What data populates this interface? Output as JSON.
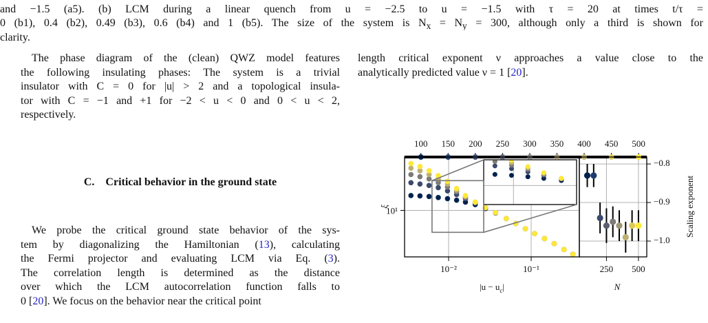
{
  "caption": {
    "lines": [
      "and −1.5 (a5).   (b) LCM during a linear quench from u = −2.5 to u = −1.5 with τ = 20 at times t/τ =",
      [
        "0 (b1), 0.4 (b2), 0.49 (b3), 0.6 (b4) and 1 (b5). The size of the system is N",
        "x",
        " = N",
        "y",
        " = 300, although only a third is shown for"
      ],
      "clarity."
    ]
  },
  "left_column": {
    "paragraph_1": {
      "lines": [
        "The phase diagram of the (clean) QWZ model features",
        "the following insulating phases: The system is a trivial",
        "insulator with C = 0 for |u| > 2 and a topological insula-",
        "tor with C = −1 and +1 for −2 < u < 0 and 0 < u < 2,",
        "respectively."
      ]
    },
    "section": {
      "number": "C.",
      "title": "Critical behavior in the ground state"
    },
    "paragraph_2": {
      "lines": [
        "We probe the critical ground state behavior of the sys-",
        [
          "tem by diagonalizing the Hamiltonian (",
          "13",
          "), calculating"
        ],
        [
          "the Fermi projector and evaluating LCM via Eq. (",
          "3",
          ")."
        ],
        "The correlation length is determined as the distance",
        "over which the LCM autocorrelation function falls to",
        [
          "0 [",
          "20",
          "]. We focus on the behavior near the critical point"
        ]
      ]
    }
  },
  "right_column": {
    "paragraph": {
      "lines": [
        "length critical exponent ν approaches a value close to the",
        [
          "analytically predicted value ν = 1 [",
          "20",
          "]."
        ]
      ]
    },
    "figure": {
      "main": {
        "type": "scatter",
        "x_label": [
          "|u − u",
          "c",
          "|"
        ],
        "y_label": "ξ",
        "log_x": true,
        "log_y": true,
        "grid": true,
        "xlim": [
          0.00293,
          0.383
        ],
        "ylim": [
          2.3,
          54
        ],
        "xticks": [
          {
            "value": 0.01,
            "label": "10⁻²"
          },
          {
            "value": 0.1,
            "label": "10⁻¹"
          }
        ],
        "yticks": [
          {
            "value": 10,
            "label": "10¹"
          }
        ],
        "x": [
          0.0035,
          0.0045,
          0.0058,
          0.0075,
          0.0097,
          0.0125,
          0.016,
          0.021,
          0.028,
          0.037,
          0.05,
          0.065,
          0.085,
          0.11,
          0.145,
          0.19,
          0.25,
          0.32
        ],
        "series": [
          {
            "N": 100,
            "color": "#00224e",
            "values": [
              16,
              15.8,
              15.5,
              15,
              14.5,
              13.8,
              13,
              12,
              10.6,
              9.2,
              7.7,
              6.6,
              5.6,
              4.8,
              4.1,
              3.5,
              2.9,
              2.5
            ]
          },
          {
            "N": 200,
            "color": "#3b496c",
            "values": [
              24,
              23,
              22,
              20.5,
              18.5,
              16.5,
              14.5,
              12.6,
              10.9,
              9.3,
              7.7,
              6.6,
              5.6,
              4.8,
              4.1,
              3.5,
              2.9,
              2.5
            ]
          },
          {
            "N": 300,
            "color": "#7c7b78",
            "values": [
              31,
              29,
              27,
              24,
              21,
              18,
              15,
              12.8,
              10.9,
              9.3,
              7.7,
              6.6,
              5.6,
              4.8,
              4.1,
              3.5,
              2.9,
              2.5
            ]
          },
          {
            "N": 400,
            "color": "#bcaf6f",
            "values": [
              38,
              35,
              31,
              27,
              23,
              19,
              15.5,
              13,
              10.9,
              9.3,
              7.7,
              6.6,
              5.6,
              4.8,
              4.1,
              3.5,
              2.9,
              2.5
            ]
          },
          {
            "N": 500,
            "color": "#fee838",
            "values": [
              44,
              40,
              35,
              30,
              25,
              20,
              16,
              13,
              10.9,
              9.3,
              7.7,
              6.6,
              5.6,
              4.8,
              4.1,
              3.5,
              2.9,
              2.5
            ]
          }
        ]
      },
      "inset": {
        "xlim": [
          0.0063,
          0.0266
        ],
        "ylim": [
          5.0,
          25.6
        ],
        "grid": true
      },
      "top_axis": {
        "xlim": [
          70,
          515
        ],
        "xticks": [
          100,
          150,
          200,
          250,
          300,
          350,
          400,
          450,
          500
        ]
      },
      "scaling": {
        "type": "errorbar",
        "x_label": "N",
        "y_label": "Scaling exponent",
        "grid": true,
        "xlim": [
          38,
          565
        ],
        "ylim": [
          -1.041,
          -0.782
        ],
        "xticks": [
          250,
          500
        ],
        "yticks": [
          {
            "value": -0.8,
            "label": "−0.8"
          },
          {
            "value": -0.9,
            "label": "−0.9"
          },
          {
            "value": -1.0,
            "label": "−1.0"
          }
        ],
        "N": [
          100,
          150,
          200,
          250,
          300,
          350,
          400,
          450,
          500
        ],
        "values": [
          -0.83,
          -0.83,
          -0.94,
          -0.96,
          -0.95,
          -0.96,
          -0.99,
          -0.96,
          -0.96
        ],
        "errors": [
          0.03,
          0.03,
          0.04,
          0.045,
          0.04,
          0.04,
          0.04,
          0.04,
          0.04
        ],
        "colors": [
          "#00224e",
          "#1f3a6e",
          "#3b496c",
          "#5b5e6e",
          "#7c7b78",
          "#9d9574",
          "#bcaf6f",
          "#ddca5c",
          "#fee838"
        ]
      }
    }
  }
}
